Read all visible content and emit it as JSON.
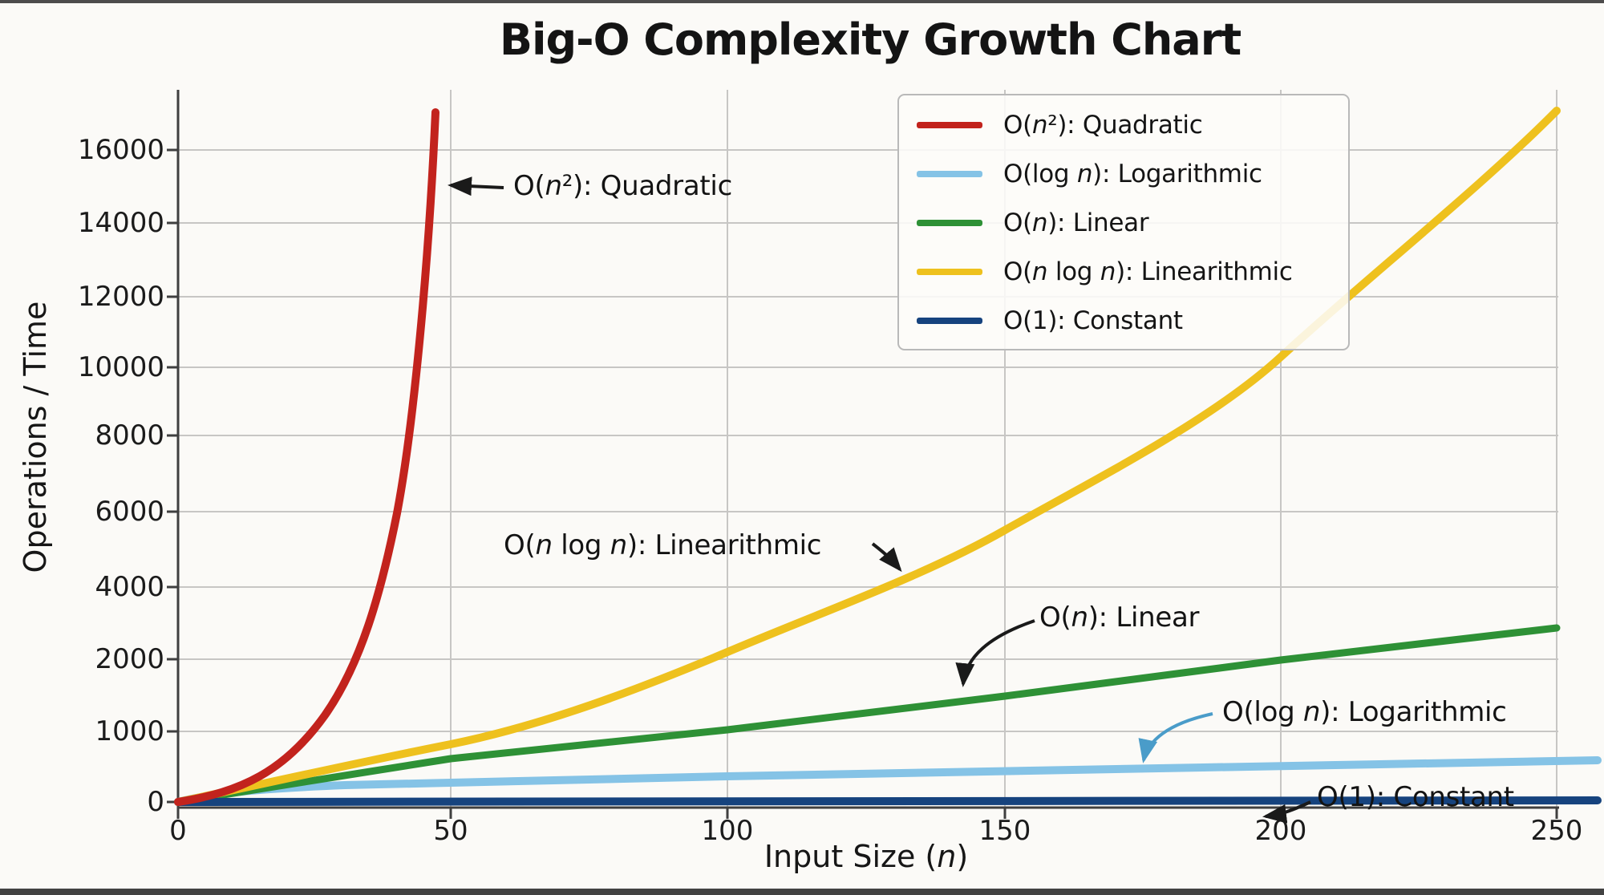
{
  "title": "Big-O Complexity Growth Chart",
  "axes": {
    "x": {
      "label": "Input Size (n)",
      "ticks": [
        "0",
        "50",
        "100",
        "150",
        "200",
        "250"
      ]
    },
    "y": {
      "label": "Operations / Time",
      "ticks": [
        "16000",
        "14000",
        "12000",
        "10000",
        "8000",
        "6000",
        "4000",
        "2000",
        "1000",
        "0"
      ]
    }
  },
  "legend": {
    "items": [
      {
        "label": "O(n²): Quadratic",
        "color": "#c2231d"
      },
      {
        "label": "O(log n): Logarithmic",
        "color": "#85c3e6"
      },
      {
        "label": "O(n): Linear",
        "color": "#2e9136"
      },
      {
        "label": "O(n log n): Linearithmic",
        "color": "#eec11e"
      },
      {
        "label": "O(1): Constant",
        "color": "#16437e"
      }
    ]
  },
  "annotations": [
    {
      "text": "O(n²): Quadratic",
      "arrow_color": "#1a1a1a"
    },
    {
      "text": "O(n log n): Linearithmic",
      "arrow_color": "#1a1a1a"
    },
    {
      "text": "O(n): Linear",
      "arrow_color": "#1a1a1a"
    },
    {
      "text": "O(log n): Logarithmic",
      "arrow_color": "#4a9cc9"
    },
    {
      "text": "O(1): Constant",
      "arrow_color": "#1a1a1a"
    }
  ],
  "chart_data": {
    "type": "line",
    "title": "Big-O Complexity Growth Chart",
    "xlabel": "Input Size (n)",
    "ylabel": "Operations / Time",
    "xlim": [
      0,
      250
    ],
    "ylim": [
      0,
      17000
    ],
    "xticks": [
      0,
      50,
      100,
      150,
      200,
      250
    ],
    "yticks": [
      0,
      1000,
      2000,
      4000,
      6000,
      8000,
      10000,
      12000,
      14000,
      16000
    ],
    "grid": true,
    "legend_position": "upper right inside plot",
    "ytick_note": "y tick values are evenly spaced on canvas despite non-uniform numeric steps",
    "series": [
      {
        "name": "O(n²): Quadratic",
        "color": "#c2231d",
        "points": [
          [
            0,
            0
          ],
          [
            10,
            250
          ],
          [
            20,
            700
          ],
          [
            30,
            1800
          ],
          [
            38,
            4500
          ],
          [
            43,
            9000
          ],
          [
            46,
            14000
          ],
          [
            47,
            17000
          ]
        ]
      },
      {
        "name": "O(log n): Logarithmic",
        "color": "#85c3e6",
        "points": [
          [
            0,
            0
          ],
          [
            10,
            150
          ],
          [
            50,
            260
          ],
          [
            100,
            360
          ],
          [
            150,
            420
          ],
          [
            200,
            500
          ],
          [
            250,
            590
          ]
        ]
      },
      {
        "name": "O(n): Linear",
        "color": "#2e9136",
        "points": [
          [
            0,
            0
          ],
          [
            50,
            600
          ],
          [
            100,
            1000
          ],
          [
            150,
            1500
          ],
          [
            200,
            2000
          ],
          [
            250,
            2900
          ]
        ]
      },
      {
        "name": "O(n log n): Linearithmic",
        "color": "#eec11e",
        "points": [
          [
            0,
            0
          ],
          [
            50,
            800
          ],
          [
            100,
            2100
          ],
          [
            150,
            5500
          ],
          [
            200,
            10400
          ],
          [
            250,
            17000
          ]
        ]
      },
      {
        "name": "O(1): Constant",
        "color": "#16437e",
        "points": [
          [
            0,
            60
          ],
          [
            125,
            60
          ],
          [
            250,
            60
          ]
        ]
      }
    ]
  }
}
